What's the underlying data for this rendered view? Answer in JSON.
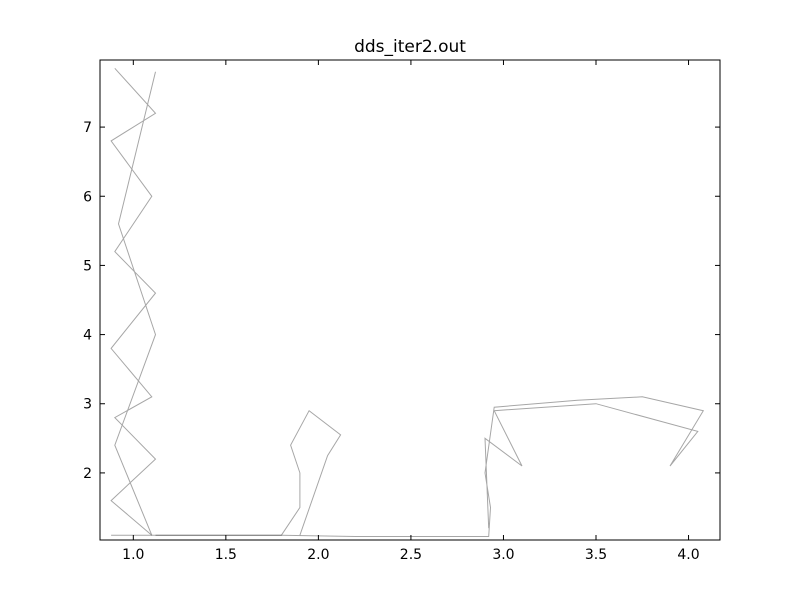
{
  "chart_data": {
    "type": "line",
    "title": "dds_iter2.out",
    "xlabel": "",
    "ylabel": "",
    "xlim": [
      0.82,
      4.17
    ],
    "ylim": [
      1.03,
      7.97
    ],
    "grid": false,
    "legend": "none",
    "line_color": "#000000",
    "x_ticks": [
      {
        "value": 1.0,
        "label": "1.0"
      },
      {
        "value": 1.5,
        "label": "1.5"
      },
      {
        "value": 2.0,
        "label": "2.0"
      },
      {
        "value": 2.5,
        "label": "2.5"
      },
      {
        "value": 3.0,
        "label": "3.0"
      },
      {
        "value": 3.5,
        "label": "3.5"
      },
      {
        "value": 4.0,
        "label": "4.0"
      }
    ],
    "y_ticks": [
      {
        "value": 2,
        "label": "2"
      },
      {
        "value": 3,
        "label": "3"
      },
      {
        "value": 4,
        "label": "4"
      },
      {
        "value": 5,
        "label": "5"
      },
      {
        "value": 6,
        "label": "6"
      },
      {
        "value": 7,
        "label": "7"
      }
    ],
    "series": [
      {
        "points": [
          [
            0.88,
            1.1
          ],
          [
            1.12,
            1.1
          ],
          [
            1.45,
            1.1
          ],
          [
            1.8,
            1.1
          ],
          [
            2.2,
            1.08
          ],
          [
            2.6,
            1.08
          ],
          [
            2.92,
            1.08
          ],
          [
            2.93,
            1.5
          ],
          [
            2.9,
            2.0
          ],
          [
            2.95,
            2.95
          ],
          [
            3.4,
            3.05
          ],
          [
            3.75,
            3.1
          ],
          [
            4.08,
            2.9
          ],
          [
            3.9,
            2.1
          ],
          [
            4.05,
            2.6
          ],
          [
            3.5,
            3.0
          ],
          [
            2.95,
            2.9
          ],
          [
            3.1,
            2.1
          ],
          [
            2.9,
            2.5
          ],
          [
            2.92,
            1.2
          ]
        ]
      },
      {
        "points": [
          [
            0.9,
            7.85
          ],
          [
            1.12,
            7.2
          ],
          [
            0.88,
            6.8
          ],
          [
            1.1,
            6.0
          ],
          [
            0.9,
            5.2
          ],
          [
            1.12,
            4.6
          ],
          [
            0.88,
            3.8
          ],
          [
            1.1,
            3.1
          ],
          [
            0.9,
            2.8
          ],
          [
            1.12,
            2.2
          ],
          [
            0.88,
            1.6
          ],
          [
            1.1,
            1.1
          ],
          [
            0.9,
            2.4
          ],
          [
            1.12,
            4.0
          ],
          [
            0.92,
            5.6
          ],
          [
            1.12,
            7.8
          ]
        ]
      },
      {
        "points": [
          [
            1.12,
            1.1
          ],
          [
            1.8,
            1.1
          ],
          [
            1.9,
            1.5
          ],
          [
            1.9,
            2.0
          ],
          [
            1.85,
            2.4
          ],
          [
            1.95,
            2.9
          ],
          [
            2.12,
            2.55
          ],
          [
            2.05,
            2.25
          ],
          [
            1.9,
            1.1
          ]
        ]
      }
    ]
  }
}
